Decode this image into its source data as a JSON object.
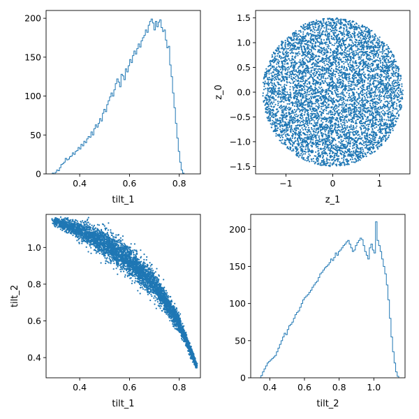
{
  "chart_data": [
    {
      "type": "histogram",
      "xlabel": "tilt_1",
      "ylabel": "",
      "xlim": [
        0.265,
        0.885
      ],
      "ylim": [
        0,
        210
      ],
      "xticks": [
        0.4,
        0.6,
        0.8
      ],
      "yticks": [
        0,
        50,
        100,
        150,
        200
      ],
      "bins": {
        "start": 0.29,
        "width": 0.00575
      },
      "counts": [
        1,
        0,
        2,
        5,
        4,
        8,
        12,
        13,
        15,
        20,
        18,
        19,
        22,
        23,
        27,
        25,
        29,
        30,
        34,
        32,
        38,
        36,
        42,
        40,
        45,
        48,
        47,
        54,
        50,
        58,
        63,
        60,
        65,
        71,
        68,
        78,
        83,
        80,
        89,
        94,
        99,
        104,
        100,
        108,
        116,
        122,
        118,
        112,
        128,
        126,
        121,
        135,
        131,
        139,
        147,
        143,
        152,
        158,
        154,
        161,
        167,
        163,
        171,
        175,
        178,
        185,
        182,
        191,
        196,
        199,
        194,
        185,
        196,
        189,
        195,
        198,
        188,
        183,
        185,
        172,
        162,
        164,
        140,
        125,
        104,
        85,
        65,
        46,
        29,
        15,
        5,
        1
      ]
    },
    {
      "type": "scatter",
      "xlabel": "z_1",
      "ylabel": "z_0",
      "xlim": [
        -1.65,
        1.65
      ],
      "ylim": [
        -1.65,
        1.65
      ],
      "xticks": [
        -1,
        0,
        1
      ],
      "yticks": [
        -1.5,
        -1.0,
        -0.5,
        0.0,
        0.5,
        1.0,
        1.5
      ],
      "ytick_labels": [
        "−1.5",
        "−1.0",
        "−0.5",
        "0.0",
        "0.5",
        "1.0",
        "1.5"
      ],
      "xtick_labels": [
        "−1",
        "0",
        "1"
      ],
      "distribution": {
        "shape": "disk",
        "center": [
          0,
          0
        ],
        "radius": 1.5,
        "n_points": 6000
      }
    },
    {
      "type": "scatter",
      "xlabel": "tilt_1",
      "ylabel": "tilt_2",
      "xlim": [
        0.265,
        0.885
      ],
      "ylim": [
        0.29,
        1.18
      ],
      "xticks": [
        0.4,
        0.6,
        0.8
      ],
      "yticks": [
        0.4,
        0.6,
        0.8,
        1.0
      ],
      "curve_points": [
        [
          0.29,
          1.145
        ],
        [
          0.4,
          1.095
        ],
        [
          0.5,
          1.025
        ],
        [
          0.6,
          0.93
        ],
        [
          0.7,
          0.8
        ],
        [
          0.8,
          0.585
        ],
        [
          0.87,
          0.355
        ]
      ],
      "n_points": 5000
    },
    {
      "type": "histogram",
      "xlabel": "tilt_2",
      "ylabel": "",
      "xlim": [
        0.29,
        1.18
      ],
      "ylim": [
        0,
        220
      ],
      "xticks": [
        0.4,
        0.6,
        0.8,
        1.0
      ],
      "yticks": [
        0,
        50,
        100,
        150,
        200
      ],
      "bins": {
        "start": 0.34,
        "width": 0.00893
      },
      "counts": [
        0,
        3,
        8,
        12,
        16,
        20,
        22,
        24,
        26,
        28,
        30,
        35,
        40,
        45,
        50,
        55,
        60,
        58,
        65,
        70,
        72,
        75,
        80,
        85,
        88,
        90,
        95,
        100,
        105,
        108,
        110,
        112,
        115,
        118,
        122,
        125,
        128,
        130,
        135,
        140,
        142,
        145,
        148,
        150,
        152,
        155,
        160,
        158,
        162,
        168,
        165,
        170,
        172,
        175,
        178,
        180,
        183,
        185,
        180,
        175,
        170,
        172,
        178,
        182,
        185,
        188,
        186,
        178,
        170,
        165,
        160,
        175,
        180,
        172,
        168,
        210,
        185,
        178,
        170,
        160,
        150,
        140,
        125,
        105,
        80,
        55,
        35,
        20,
        8,
        2
      ]
    }
  ]
}
